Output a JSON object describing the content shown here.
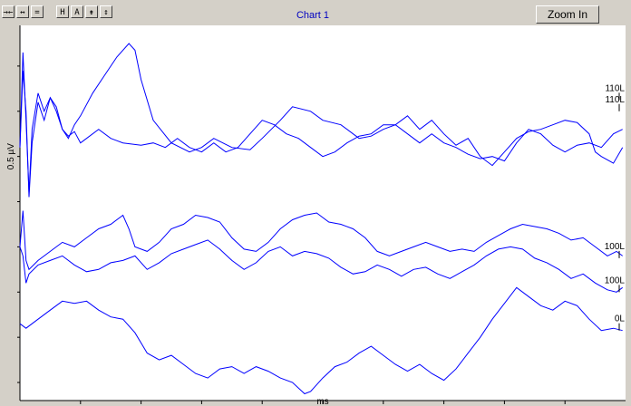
{
  "toolbar": {
    "buttons": [
      {
        "name": "fit-icon",
        "glyph": "→←"
      },
      {
        "name": "expand-icon",
        "glyph": "↔"
      },
      {
        "name": "equal-icon",
        "glyph": "="
      },
      {
        "name": "h-icon",
        "glyph": "H"
      },
      {
        "name": "a-icon",
        "glyph": "A"
      },
      {
        "name": "vertical-compress-icon",
        "glyph": "⇟"
      },
      {
        "name": "vertical-expand-icon",
        "glyph": "↕"
      }
    ]
  },
  "zoom_label": "Zoom In",
  "chart_data": {
    "type": "line",
    "title": "Chart 1",
    "xlabel": "ms",
    "ylabel": "0.5 µV",
    "xlim": [
      0,
      10
    ],
    "xticks": [
      1,
      2,
      3,
      4,
      5,
      6,
      7,
      8,
      9
    ],
    "ylim": [
      -5.4,
      2.9
    ],
    "yticks": [
      -5,
      -4,
      -3,
      -2,
      -1,
      0,
      1,
      2
    ],
    "series": [
      {
        "name": "110L",
        "label_y": 1.45,
        "points": [
          [
            0,
            0.2
          ],
          [
            0.05,
            2.3
          ],
          [
            0.1,
            0.8
          ],
          [
            0.15,
            -0.8
          ],
          [
            0.2,
            0.6
          ],
          [
            0.3,
            1.4
          ],
          [
            0.4,
            1.0
          ],
          [
            0.5,
            1.3
          ],
          [
            0.6,
            1.0
          ],
          [
            0.7,
            0.6
          ],
          [
            0.8,
            0.4
          ],
          [
            0.9,
            0.7
          ],
          [
            1.0,
            0.9
          ],
          [
            1.2,
            1.4
          ],
          [
            1.4,
            1.8
          ],
          [
            1.6,
            2.2
          ],
          [
            1.8,
            2.5
          ],
          [
            1.9,
            2.35
          ],
          [
            2.0,
            1.7
          ],
          [
            2.2,
            0.8
          ],
          [
            2.5,
            0.3
          ],
          [
            2.8,
            0.1
          ],
          [
            3.0,
            0.2
          ],
          [
            3.2,
            0.4
          ],
          [
            3.5,
            0.2
          ],
          [
            3.8,
            0.15
          ],
          [
            4.0,
            0.4
          ],
          [
            4.3,
            0.8
          ],
          [
            4.5,
            1.1
          ],
          [
            4.8,
            1.0
          ],
          [
            5.0,
            0.8
          ],
          [
            5.3,
            0.7
          ],
          [
            5.6,
            0.4
          ],
          [
            5.8,
            0.45
          ],
          [
            6.0,
            0.6
          ],
          [
            6.2,
            0.7
          ],
          [
            6.4,
            0.9
          ],
          [
            6.6,
            0.6
          ],
          [
            6.8,
            0.8
          ],
          [
            7.0,
            0.5
          ],
          [
            7.2,
            0.25
          ],
          [
            7.4,
            0.4
          ],
          [
            7.6,
            0.0
          ],
          [
            7.8,
            -0.2
          ],
          [
            8.0,
            0.1
          ],
          [
            8.2,
            0.4
          ],
          [
            8.4,
            0.55
          ],
          [
            8.6,
            0.6
          ],
          [
            8.8,
            0.7
          ],
          [
            9.0,
            0.8
          ],
          [
            9.2,
            0.75
          ],
          [
            9.4,
            0.5
          ],
          [
            9.5,
            0.1
          ],
          [
            9.6,
            0.0
          ],
          [
            9.8,
            -0.15
          ],
          [
            9.95,
            0.2
          ]
        ]
      },
      {
        "name": "110L",
        "label_y": 1.2,
        "points": [
          [
            0,
            0.2
          ],
          [
            0.05,
            1.9
          ],
          [
            0.1,
            1.0
          ],
          [
            0.15,
            -0.9
          ],
          [
            0.2,
            0.3
          ],
          [
            0.3,
            1.2
          ],
          [
            0.4,
            0.8
          ],
          [
            0.5,
            1.3
          ],
          [
            0.6,
            1.1
          ],
          [
            0.7,
            0.6
          ],
          [
            0.8,
            0.45
          ],
          [
            0.9,
            0.55
          ],
          [
            1.0,
            0.3
          ],
          [
            1.1,
            0.4
          ],
          [
            1.3,
            0.6
          ],
          [
            1.5,
            0.4
          ],
          [
            1.7,
            0.3
          ],
          [
            2.0,
            0.25
          ],
          [
            2.2,
            0.3
          ],
          [
            2.4,
            0.2
          ],
          [
            2.6,
            0.4
          ],
          [
            2.8,
            0.2
          ],
          [
            3.0,
            0.1
          ],
          [
            3.2,
            0.3
          ],
          [
            3.4,
            0.1
          ],
          [
            3.6,
            0.2
          ],
          [
            3.8,
            0.5
          ],
          [
            4.0,
            0.8
          ],
          [
            4.2,
            0.7
          ],
          [
            4.4,
            0.5
          ],
          [
            4.6,
            0.4
          ],
          [
            4.8,
            0.2
          ],
          [
            5.0,
            0.0
          ],
          [
            5.2,
            0.1
          ],
          [
            5.4,
            0.3
          ],
          [
            5.6,
            0.45
          ],
          [
            5.8,
            0.5
          ],
          [
            6.0,
            0.7
          ],
          [
            6.2,
            0.7
          ],
          [
            6.4,
            0.5
          ],
          [
            6.6,
            0.3
          ],
          [
            6.8,
            0.5
          ],
          [
            7.0,
            0.3
          ],
          [
            7.2,
            0.2
          ],
          [
            7.4,
            0.05
          ],
          [
            7.6,
            -0.05
          ],
          [
            7.8,
            0.0
          ],
          [
            8.0,
            -0.1
          ],
          [
            8.2,
            0.3
          ],
          [
            8.4,
            0.6
          ],
          [
            8.6,
            0.5
          ],
          [
            8.8,
            0.25
          ],
          [
            9.0,
            0.1
          ],
          [
            9.2,
            0.25
          ],
          [
            9.4,
            0.3
          ],
          [
            9.6,
            0.2
          ],
          [
            9.8,
            0.5
          ],
          [
            9.95,
            0.6
          ]
        ]
      },
      {
        "name": "100L",
        "label_y": -2.05,
        "points": [
          [
            0,
            -2.0
          ],
          [
            0.05,
            -1.2
          ],
          [
            0.1,
            -2.3
          ],
          [
            0.15,
            -2.5
          ],
          [
            0.3,
            -2.3
          ],
          [
            0.5,
            -2.1
          ],
          [
            0.7,
            -1.9
          ],
          [
            0.9,
            -2.0
          ],
          [
            1.1,
            -1.8
          ],
          [
            1.3,
            -1.6
          ],
          [
            1.5,
            -1.5
          ],
          [
            1.7,
            -1.3
          ],
          [
            1.8,
            -1.6
          ],
          [
            1.9,
            -2.0
          ],
          [
            2.1,
            -2.1
          ],
          [
            2.3,
            -1.9
          ],
          [
            2.5,
            -1.6
          ],
          [
            2.7,
            -1.5
          ],
          [
            2.9,
            -1.3
          ],
          [
            3.1,
            -1.35
          ],
          [
            3.3,
            -1.45
          ],
          [
            3.5,
            -1.8
          ],
          [
            3.7,
            -2.05
          ],
          [
            3.9,
            -2.1
          ],
          [
            4.1,
            -1.9
          ],
          [
            4.3,
            -1.6
          ],
          [
            4.5,
            -1.4
          ],
          [
            4.7,
            -1.3
          ],
          [
            4.9,
            -1.25
          ],
          [
            5.1,
            -1.45
          ],
          [
            5.3,
            -1.5
          ],
          [
            5.5,
            -1.6
          ],
          [
            5.7,
            -1.8
          ],
          [
            5.9,
            -2.1
          ],
          [
            6.1,
            -2.2
          ],
          [
            6.3,
            -2.1
          ],
          [
            6.5,
            -2.0
          ],
          [
            6.7,
            -1.9
          ],
          [
            6.9,
            -2.0
          ],
          [
            7.1,
            -2.1
          ],
          [
            7.3,
            -2.05
          ],
          [
            7.5,
            -2.1
          ],
          [
            7.7,
            -1.9
          ],
          [
            7.9,
            -1.75
          ],
          [
            8.1,
            -1.6
          ],
          [
            8.3,
            -1.5
          ],
          [
            8.5,
            -1.55
          ],
          [
            8.7,
            -1.6
          ],
          [
            8.9,
            -1.7
          ],
          [
            9.1,
            -1.85
          ],
          [
            9.3,
            -1.8
          ],
          [
            9.5,
            -2.0
          ],
          [
            9.7,
            -2.2
          ],
          [
            9.85,
            -2.1
          ],
          [
            9.95,
            -2.2
          ]
        ]
      },
      {
        "name": "100L",
        "label_y": -2.8,
        "points": [
          [
            0,
            -2.0
          ],
          [
            0.05,
            -2.2
          ],
          [
            0.1,
            -2.8
          ],
          [
            0.15,
            -2.6
          ],
          [
            0.3,
            -2.4
          ],
          [
            0.5,
            -2.3
          ],
          [
            0.7,
            -2.2
          ],
          [
            0.9,
            -2.4
          ],
          [
            1.1,
            -2.55
          ],
          [
            1.3,
            -2.5
          ],
          [
            1.5,
            -2.35
          ],
          [
            1.7,
            -2.3
          ],
          [
            1.9,
            -2.2
          ],
          [
            2.1,
            -2.5
          ],
          [
            2.3,
            -2.35
          ],
          [
            2.5,
            -2.15
          ],
          [
            2.7,
            -2.05
          ],
          [
            2.9,
            -1.95
          ],
          [
            3.1,
            -1.85
          ],
          [
            3.3,
            -2.05
          ],
          [
            3.5,
            -2.3
          ],
          [
            3.7,
            -2.5
          ],
          [
            3.9,
            -2.35
          ],
          [
            4.1,
            -2.1
          ],
          [
            4.3,
            -2.0
          ],
          [
            4.5,
            -2.2
          ],
          [
            4.7,
            -2.1
          ],
          [
            4.9,
            -2.15
          ],
          [
            5.1,
            -2.25
          ],
          [
            5.3,
            -2.45
          ],
          [
            5.5,
            -2.6
          ],
          [
            5.7,
            -2.55
          ],
          [
            5.9,
            -2.4
          ],
          [
            6.1,
            -2.5
          ],
          [
            6.3,
            -2.65
          ],
          [
            6.5,
            -2.5
          ],
          [
            6.7,
            -2.45
          ],
          [
            6.9,
            -2.6
          ],
          [
            7.1,
            -2.7
          ],
          [
            7.3,
            -2.55
          ],
          [
            7.5,
            -2.4
          ],
          [
            7.7,
            -2.2
          ],
          [
            7.9,
            -2.05
          ],
          [
            8.1,
            -2.0
          ],
          [
            8.3,
            -2.05
          ],
          [
            8.5,
            -2.25
          ],
          [
            8.7,
            -2.35
          ],
          [
            8.9,
            -2.5
          ],
          [
            9.1,
            -2.7
          ],
          [
            9.3,
            -2.6
          ],
          [
            9.5,
            -2.8
          ],
          [
            9.7,
            -2.95
          ],
          [
            9.85,
            -3.0
          ],
          [
            9.95,
            -2.9
          ]
        ]
      },
      {
        "name": "0L",
        "label_y": -3.65,
        "points": [
          [
            0,
            -3.7
          ],
          [
            0.1,
            -3.8
          ],
          [
            0.3,
            -3.6
          ],
          [
            0.5,
            -3.4
          ],
          [
            0.7,
            -3.2
          ],
          [
            0.9,
            -3.25
          ],
          [
            1.1,
            -3.2
          ],
          [
            1.3,
            -3.4
          ],
          [
            1.5,
            -3.55
          ],
          [
            1.7,
            -3.6
          ],
          [
            1.9,
            -3.9
          ],
          [
            2.1,
            -4.35
          ],
          [
            2.3,
            -4.5
          ],
          [
            2.5,
            -4.4
          ],
          [
            2.7,
            -4.6
          ],
          [
            2.9,
            -4.8
          ],
          [
            3.1,
            -4.9
          ],
          [
            3.3,
            -4.7
          ],
          [
            3.5,
            -4.65
          ],
          [
            3.7,
            -4.8
          ],
          [
            3.9,
            -4.65
          ],
          [
            4.1,
            -4.75
          ],
          [
            4.3,
            -4.9
          ],
          [
            4.5,
            -5.0
          ],
          [
            4.7,
            -5.25
          ],
          [
            4.8,
            -5.2
          ],
          [
            5.0,
            -4.9
          ],
          [
            5.2,
            -4.65
          ],
          [
            5.4,
            -4.55
          ],
          [
            5.6,
            -4.35
          ],
          [
            5.8,
            -4.2
          ],
          [
            6.0,
            -4.4
          ],
          [
            6.2,
            -4.6
          ],
          [
            6.4,
            -4.75
          ],
          [
            6.6,
            -4.6
          ],
          [
            6.8,
            -4.8
          ],
          [
            7.0,
            -4.95
          ],
          [
            7.2,
            -4.7
          ],
          [
            7.4,
            -4.35
          ],
          [
            7.6,
            -4.0
          ],
          [
            7.8,
            -3.6
          ],
          [
            8.0,
            -3.25
          ],
          [
            8.2,
            -2.9
          ],
          [
            8.4,
            -3.1
          ],
          [
            8.6,
            -3.3
          ],
          [
            8.8,
            -3.4
          ],
          [
            9.0,
            -3.2
          ],
          [
            9.2,
            -3.3
          ],
          [
            9.4,
            -3.6
          ],
          [
            9.6,
            -3.85
          ],
          [
            9.8,
            -3.8
          ],
          [
            9.95,
            -3.85
          ]
        ]
      }
    ]
  }
}
